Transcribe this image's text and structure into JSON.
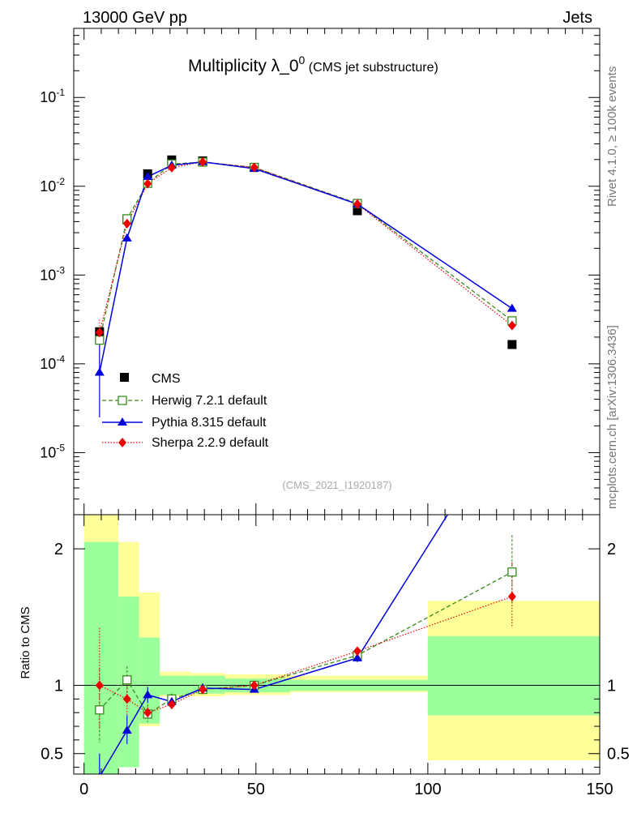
{
  "header": {
    "left": "13000 GeV pp",
    "right": "Jets"
  },
  "side": {
    "rivet": "Rivet 4.1.0, ≥ 100k events",
    "mcplots": "mcplots.cern.ch [arXiv:1306.3436]"
  },
  "title": {
    "main": "Multiplicity λ_0",
    "sup": "0",
    "sub": " (CMS jet substructure)"
  },
  "watermark": "(CMS_2021_I1920187)",
  "ratio_ylabel": "Ratio to CMS",
  "legend": {
    "cms": "CMS",
    "herwig": "Herwig 7.2.1 default",
    "pythia": "Pythia 8.315 default",
    "sherpa": "Sherpa 2.2.9 default"
  },
  "colors": {
    "cms": "#000000",
    "herwig": "#3a8a1e",
    "pythia": "#0000dd",
    "sherpa": "#ee0000",
    "band_inner": "#9bff9b",
    "band_outer": "#ffff99"
  },
  "chart_data": [
    {
      "type": "line",
      "title": "Multiplicity λ_0^0 (CMS jet substructure)",
      "yscale": "log",
      "ylim": [
        2e-06,
        0.6
      ],
      "xlim": [
        -3,
        150
      ],
      "ytick_labels": [
        "10^-5",
        "10^-4",
        "10^-3",
        "10^-2",
        "10^-1"
      ],
      "x": [
        4.5,
        12.5,
        18.5,
        25.5,
        34.5,
        49.5,
        79.5,
        124.5
      ],
      "series": [
        {
          "name": "CMS",
          "values": [
            0.00023,
            0.0042,
            0.0138,
            0.0198,
            0.0193,
            0.0163,
            0.0053,
            0.000165
          ]
        },
        {
          "name": "Herwig 7.2.1 default",
          "values": [
            0.000185,
            0.0043,
            0.0108,
            0.0178,
            0.0187,
            0.0163,
            0.0064,
            0.000305
          ]
        },
        {
          "name": "Pythia 8.315 default",
          "values": [
            8e-05,
            0.0026,
            0.0128,
            0.0172,
            0.0188,
            0.0158,
            0.0063,
            0.00042
          ]
        },
        {
          "name": "Sherpa 2.2.9 default",
          "values": [
            0.000226,
            0.0038,
            0.0107,
            0.0162,
            0.0188,
            0.0163,
            0.0063,
            0.00027
          ]
        }
      ]
    },
    {
      "type": "line",
      "ylabel": "Ratio to CMS",
      "ylim": [
        0.35,
        2.25
      ],
      "xlim": [
        -3,
        150
      ],
      "yticks": [
        0.5,
        1,
        2
      ],
      "ytick_labels": [
        "0.5",
        "1",
        "2"
      ],
      "xticks": [
        0,
        50,
        100,
        150
      ],
      "xtick_labels": [
        "0",
        "50",
        "100",
        "150"
      ],
      "bins": [
        [
          0,
          10
        ],
        [
          10,
          16
        ],
        [
          16,
          22
        ],
        [
          22,
          31
        ],
        [
          31,
          41
        ],
        [
          41,
          60
        ],
        [
          60,
          100
        ],
        [
          100,
          150
        ]
      ],
      "uncertainty_inner": [
        [
          0.33,
          2.05
        ],
        [
          0.4,
          1.65
        ],
        [
          0.72,
          1.35
        ],
        [
          0.93,
          1.07
        ],
        [
          0.94,
          1.07
        ],
        [
          0.95,
          1.05
        ],
        [
          0.96,
          1.04
        ],
        [
          0.78,
          1.36
        ]
      ],
      "uncertainty_outer": [
        [
          0.33,
          2.25
        ],
        [
          0.45,
          2.05
        ],
        [
          0.7,
          1.68
        ],
        [
          0.92,
          1.1
        ],
        [
          0.92,
          1.09
        ],
        [
          0.93,
          1.08
        ],
        [
          0.95,
          1.07
        ],
        [
          0.45,
          1.62
        ]
      ],
      "x": [
        4.5,
        12.5,
        18.5,
        25.5,
        34.5,
        49.5,
        79.5,
        124.5
      ],
      "series": [
        {
          "name": "Herwig 7.2.1 default",
          "values": [
            0.82,
            1.04,
            0.79,
            0.9,
            0.97,
            1.0,
            1.22,
            1.83
          ]
        },
        {
          "name": "Pythia 8.315 default",
          "values": [
            0.33,
            0.67,
            0.93,
            0.88,
            0.98,
            0.97,
            1.2,
            3.0
          ]
        },
        {
          "name": "Sherpa 2.2.9 default",
          "values": [
            1.0,
            0.9,
            0.8,
            0.86,
            0.97,
            1.0,
            1.25,
            1.65
          ]
        }
      ]
    }
  ]
}
